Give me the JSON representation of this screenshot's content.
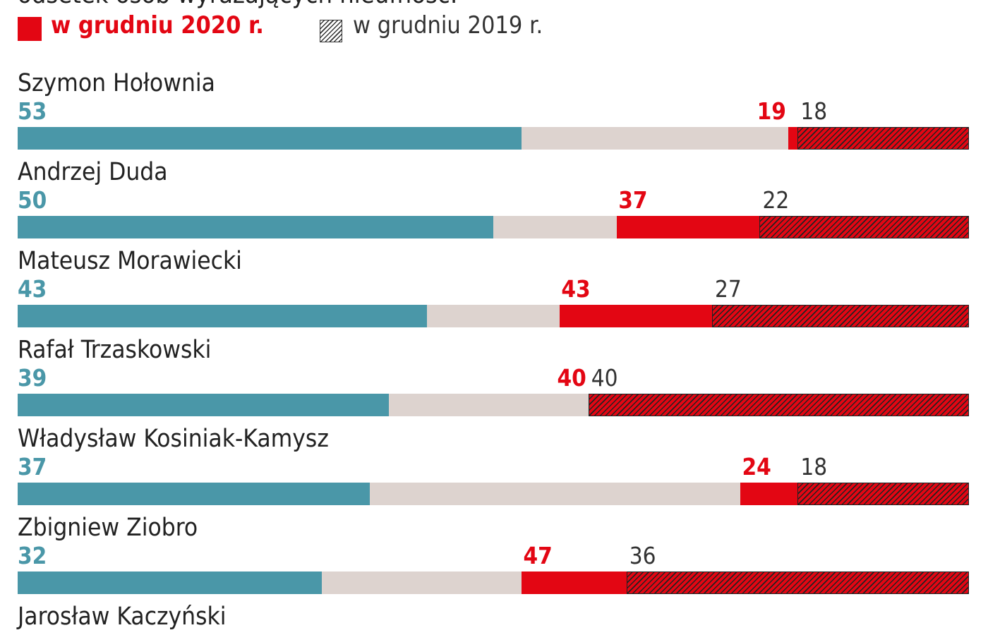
{
  "chart_data": {
    "type": "bar",
    "subtitle": "odsetek osób wyrażających nieufność:",
    "legend": [
      {
        "label": "w grudniu 2020 r.",
        "style": "solid",
        "color": "#e30613"
      },
      {
        "label": "w grudniu 2019 r.",
        "style": "hatched"
      }
    ],
    "xlim": [
      0,
      100
    ],
    "colors": {
      "trust": "#4a97a8",
      "neutral": "#ddd3cf",
      "distrust": "#e30613",
      "hatch": "#222222"
    },
    "categories": [
      "Szymon Hołownia",
      "Andrzej Duda",
      "Mateusz Morawiecki",
      "Rafał Trzaskowski",
      "Władysław Kosiniak-Kamysz",
      "Zbigniew Ziobro",
      "Jarosław Kaczyński"
    ],
    "series": [
      {
        "key": "trust",
        "values": [
          53,
          50,
          43,
          39,
          37,
          32,
          null
        ]
      },
      {
        "key": "distrust_2020",
        "values": [
          19,
          37,
          43,
          40,
          24,
          47,
          null
        ]
      },
      {
        "key": "distrust_2019",
        "values": [
          18,
          22,
          27,
          40,
          18,
          36,
          null
        ]
      }
    ]
  }
}
